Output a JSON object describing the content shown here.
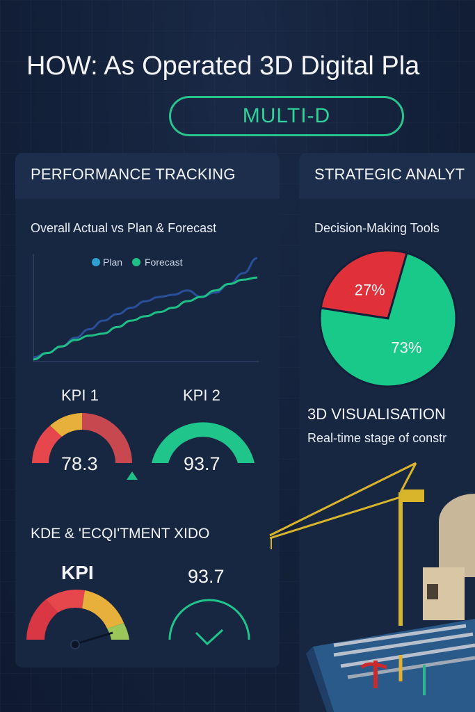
{
  "title": "HOW: As Operated 3D Digital Pla",
  "badge": "MULTI-D",
  "left_panel": {
    "header": "PERFORMANCE TRACKING",
    "chart_title": "Overall Actual vs Plan & Forecast",
    "kpi1": {
      "label": "KPI 1",
      "value": "78.3"
    },
    "kpi2": {
      "label": "KPI 2",
      "value": "93.7"
    },
    "section2": "KDE & 'ECQI'TMENT XIDO",
    "kpi3": {
      "label": "KPI"
    },
    "kpi4": {
      "value": "93.7"
    }
  },
  "right_panel": {
    "header": "STRATEGIC ANALYT",
    "tools_title": "Decision-Making Tools",
    "vis_title": "3D VISUALISATION",
    "vis_sub": "Real-time stage of constr"
  },
  "colors": {
    "plan": "#2f9fd1",
    "forecast": "#1fbf85",
    "actual_line": "#2a4f9a",
    "red": "#e0313b",
    "green": "#19c98a",
    "amber": "#e8b23a"
  },
  "chart_data": [
    {
      "type": "line",
      "title": "Overall Actual vs Plan & Forecast",
      "legend": [
        "Plan",
        "Forecast"
      ],
      "legend_position": "top",
      "x": [
        0,
        1,
        2,
        3,
        4,
        5,
        6,
        7,
        8,
        9,
        10,
        11,
        12,
        13,
        14,
        15,
        16
      ],
      "series": [
        {
          "name": "Plan",
          "values": [
            4,
            8,
            14,
            22,
            30,
            38,
            44,
            50,
            56,
            60,
            62,
            66,
            60,
            64,
            72,
            82,
            96
          ]
        },
        {
          "name": "Forecast",
          "values": [
            2,
            8,
            14,
            20,
            24,
            26,
            32,
            38,
            42,
            46,
            50,
            56,
            60,
            66,
            72,
            76,
            78
          ]
        }
      ]
    },
    {
      "type": "pie",
      "title": "Decision-Making Tools",
      "slices": [
        {
          "label": "27%",
          "value": 27,
          "color": "#e0313b"
        },
        {
          "label": "73%",
          "value": 73,
          "color": "#19c98a"
        }
      ]
    }
  ],
  "icons": {
    "legend_plan": "dot-icon",
    "legend_forecast": "dot-icon",
    "kpi1_marker": "triangle-up-icon",
    "kpi4_check": "checkmark-icon",
    "crane": "construction-crane-icon",
    "plant": "industrial-plant-icon"
  }
}
